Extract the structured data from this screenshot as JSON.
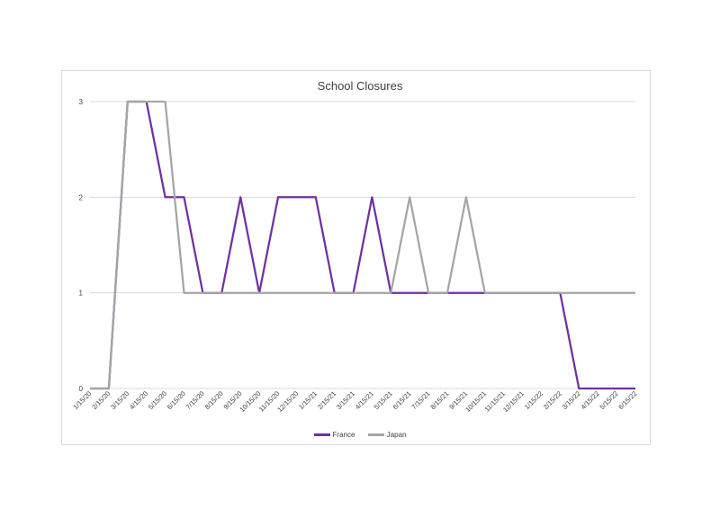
{
  "chart_data": {
    "type": "line",
    "title": "School Closures",
    "xlabel": "",
    "ylabel": "",
    "ylim": [
      0,
      3
    ],
    "y_ticks": [
      "0",
      "1",
      "2",
      "3"
    ],
    "grid": true,
    "legend_position": "bottom",
    "categories": [
      "1/15/20",
      "2/15/20",
      "3/15/20",
      "4/15/20",
      "5/15/20",
      "6/15/20",
      "7/15/20",
      "8/15/20",
      "9/15/20",
      "10/15/20",
      "11/15/20",
      "12/15/20",
      "1/15/21",
      "2/15/21",
      "3/15/21",
      "4/15/21",
      "5/15/21",
      "6/15/21",
      "7/15/21",
      "8/15/21",
      "9/15/21",
      "10/15/21",
      "11/15/21",
      "12/15/21",
      "1/15/22",
      "2/15/22",
      "3/15/22",
      "4/15/22",
      "5/15/22",
      "6/15/22"
    ],
    "series": [
      {
        "name": "France",
        "color": "#7030a0",
        "values": [
          0,
          0,
          3,
          3,
          2,
          2,
          1,
          1,
          2,
          1,
          2,
          2,
          2,
          1,
          1,
          2,
          1,
          1,
          1,
          1,
          1,
          1,
          1,
          1,
          1,
          1,
          0,
          0,
          0,
          0
        ]
      },
      {
        "name": "Japan",
        "color": "#a5a5a5",
        "values": [
          0,
          0,
          3,
          3,
          3,
          1,
          1,
          1,
          1,
          1,
          1,
          1,
          1,
          1,
          1,
          1,
          1,
          2,
          1,
          1,
          2,
          1,
          1,
          1,
          1,
          1,
          1,
          1,
          1,
          1
        ]
      }
    ]
  }
}
